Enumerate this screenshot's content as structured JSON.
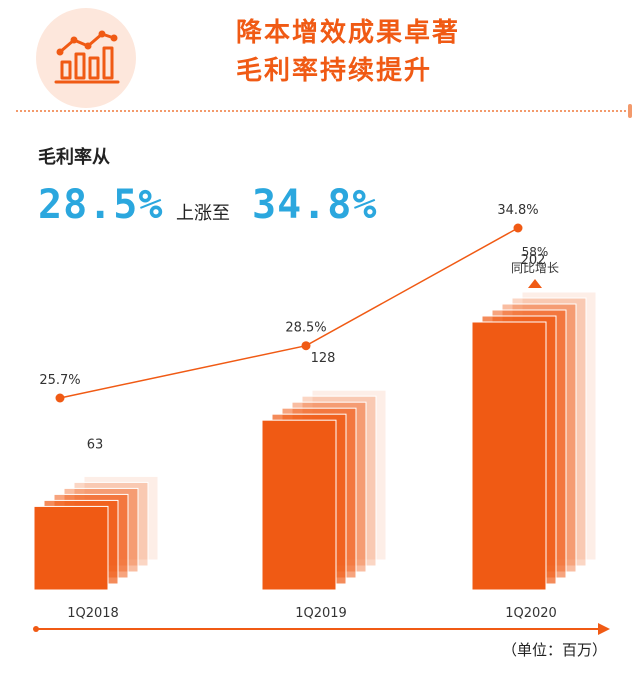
{
  "header": {
    "title_line1": "降本增效成果卓著",
    "title_line2": "毛利率持续提升"
  },
  "headline": {
    "label": "毛利率从",
    "from_value": "28.5%",
    "connector": "上涨至",
    "to_value": "34.8%"
  },
  "chart_data": {
    "type": "bar",
    "categories": [
      "1Q2018",
      "1Q2019",
      "1Q2020"
    ],
    "series": [
      {
        "values": [
          63,
          128,
          202
        ],
        "labels": [
          "63",
          "128",
          "202"
        ]
      },
      {
        "values": [
          25.7,
          28.5,
          34.8
        ],
        "labels": [
          "25.7%",
          "28.5%",
          "34.8%"
        ]
      }
    ],
    "annotation": {
      "value": "58%",
      "text": "同比增长"
    },
    "unit_note": "（单位：百万）",
    "colors": {
      "accent": "#f05a14",
      "highlight": "#2ba7de"
    }
  },
  "icons": {
    "header_icon": "growth-chart-icon"
  }
}
